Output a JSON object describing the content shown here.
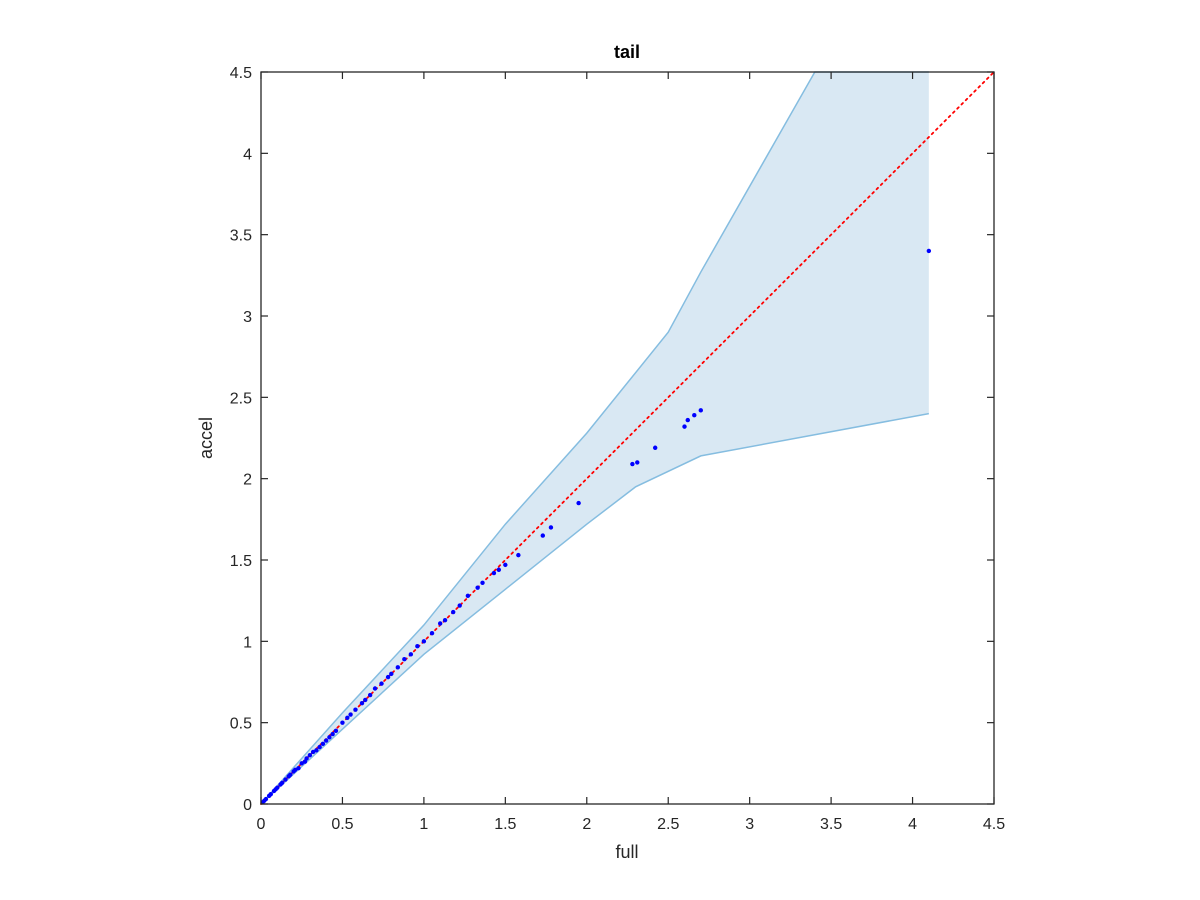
{
  "chart_data": {
    "type": "scatter",
    "title": "tail",
    "xlabel": "full",
    "ylabel": "accel",
    "xlim": [
      0,
      4.5
    ],
    "ylim": [
      0,
      4.5
    ],
    "xticks": [
      "0",
      "0.5",
      "1",
      "1.5",
      "2",
      "2.5",
      "3",
      "3.5",
      "4",
      "4.5"
    ],
    "yticks": [
      "0",
      "0.5",
      "1",
      "1.5",
      "2",
      "2.5",
      "3",
      "3.5",
      "4",
      "4.5"
    ],
    "grid": false,
    "reference_line": {
      "x": [
        0,
        4.5
      ],
      "y": [
        0,
        4.5
      ],
      "style": "dotted",
      "color": "#ff0000"
    },
    "band": {
      "color": "#d9e8f3",
      "edge_color": "#85bde0",
      "upper": [
        [
          0,
          0
        ],
        [
          0.5,
          0.56
        ],
        [
          1,
          1.1
        ],
        [
          1.5,
          1.72
        ],
        [
          2,
          2.28
        ],
        [
          2.5,
          2.9
        ],
        [
          2.7,
          3.27
        ],
        [
          3.4,
          4.5
        ],
        [
          4.1,
          4.5
        ]
      ],
      "lower": [
        [
          0,
          0
        ],
        [
          0.5,
          0.46
        ],
        [
          1,
          0.92
        ],
        [
          1.5,
          1.32
        ],
        [
          2,
          1.72
        ],
        [
          2.3,
          1.95
        ],
        [
          2.7,
          2.14
        ],
        [
          4.1,
          2.4
        ]
      ]
    },
    "points_color": "#0000ff",
    "points": [
      [
        0.01,
        0.01
      ],
      [
        0.02,
        0.02
      ],
      [
        0.03,
        0.03
      ],
      [
        0.05,
        0.05
      ],
      [
        0.06,
        0.06
      ],
      [
        0.08,
        0.08
      ],
      [
        0.09,
        0.09
      ],
      [
        0.1,
        0.1
      ],
      [
        0.12,
        0.12
      ],
      [
        0.13,
        0.13
      ],
      [
        0.15,
        0.15
      ],
      [
        0.17,
        0.17
      ],
      [
        0.18,
        0.18
      ],
      [
        0.2,
        0.2
      ],
      [
        0.21,
        0.21
      ],
      [
        0.23,
        0.22
      ],
      [
        0.25,
        0.25
      ],
      [
        0.27,
        0.26
      ],
      [
        0.28,
        0.28
      ],
      [
        0.3,
        0.3
      ],
      [
        0.32,
        0.32
      ],
      [
        0.34,
        0.33
      ],
      [
        0.36,
        0.35
      ],
      [
        0.38,
        0.37
      ],
      [
        0.4,
        0.39
      ],
      [
        0.42,
        0.41
      ],
      [
        0.44,
        0.43
      ],
      [
        0.46,
        0.45
      ],
      [
        0.5,
        0.5
      ],
      [
        0.53,
        0.53
      ],
      [
        0.55,
        0.55
      ],
      [
        0.58,
        0.58
      ],
      [
        0.62,
        0.62
      ],
      [
        0.64,
        0.64
      ],
      [
        0.67,
        0.67
      ],
      [
        0.7,
        0.71
      ],
      [
        0.74,
        0.74
      ],
      [
        0.78,
        0.78
      ],
      [
        0.8,
        0.8
      ],
      [
        0.84,
        0.84
      ],
      [
        0.88,
        0.89
      ],
      [
        0.92,
        0.92
      ],
      [
        0.96,
        0.97
      ],
      [
        1.0,
        1.0
      ],
      [
        1.05,
        1.05
      ],
      [
        1.1,
        1.11
      ],
      [
        1.13,
        1.13
      ],
      [
        1.18,
        1.18
      ],
      [
        1.22,
        1.22
      ],
      [
        1.27,
        1.28
      ],
      [
        1.33,
        1.33
      ],
      [
        1.36,
        1.36
      ],
      [
        1.43,
        1.42
      ],
      [
        1.46,
        1.44
      ],
      [
        1.5,
        1.47
      ],
      [
        1.58,
        1.53
      ],
      [
        1.73,
        1.65
      ],
      [
        1.78,
        1.7
      ],
      [
        1.95,
        1.85
      ],
      [
        2.28,
        2.09
      ],
      [
        2.31,
        2.1
      ],
      [
        2.42,
        2.19
      ],
      [
        2.6,
        2.32
      ],
      [
        2.62,
        2.36
      ],
      [
        2.66,
        2.39
      ],
      [
        2.7,
        2.42
      ],
      [
        4.1,
        3.4
      ]
    ]
  }
}
